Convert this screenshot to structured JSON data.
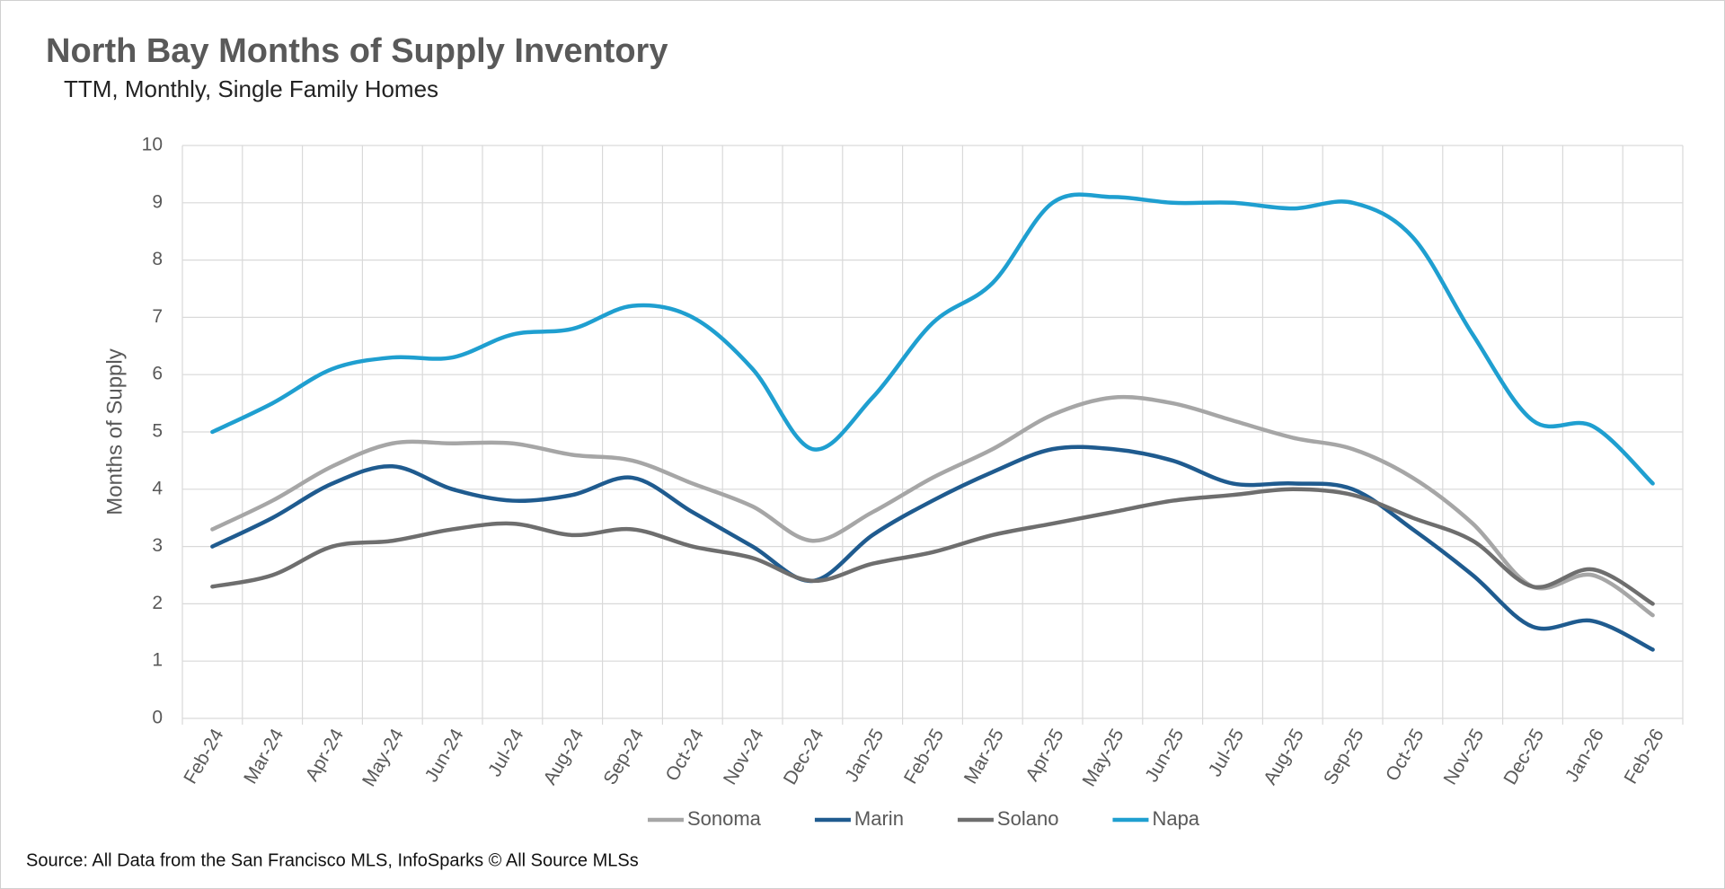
{
  "chart_data": {
    "type": "line",
    "title": "North Bay Months of Supply Inventory",
    "subtitle": "TTM, Monthly, Single Family Homes",
    "y_label": "Months of Supply",
    "source": "Source: All Data from the San Francisco MLS, InfoSparks © All Source MLSs",
    "categories": [
      "Feb-24",
      "Mar-24",
      "Apr-24",
      "May-24",
      "Jun-24",
      "Jul-24",
      "Aug-24",
      "Sep-24",
      "Oct-24",
      "Nov-24",
      "Dec-24",
      "Jan-25",
      "Feb-25",
      "Mar-25",
      "Apr-25",
      "May-25",
      "Jun-25",
      "Jul-25",
      "Aug-25",
      "Sep-25",
      "Oct-25",
      "Nov-25",
      "Dec-25",
      "Jan-26",
      "Feb-26"
    ],
    "series": [
      {
        "name": "Sonoma",
        "color": "#a6a6a6",
        "values": [
          3.3,
          3.8,
          4.4,
          4.8,
          4.8,
          4.8,
          4.6,
          4.5,
          4.1,
          3.7,
          3.1,
          3.6,
          4.2,
          4.7,
          5.3,
          5.6,
          5.5,
          5.2,
          4.9,
          4.7,
          4.2,
          3.4,
          2.3,
          2.5,
          1.8
        ]
      },
      {
        "name": "Marin",
        "color": "#1f5b8f",
        "values": [
          3.0,
          3.5,
          4.1,
          4.4,
          4.0,
          3.8,
          3.9,
          4.2,
          3.6,
          3.0,
          2.4,
          3.2,
          3.8,
          4.3,
          4.7,
          4.7,
          4.5,
          4.1,
          4.1,
          4.0,
          3.3,
          2.5,
          1.6,
          1.7,
          1.2
        ]
      },
      {
        "name": "Solano",
        "color": "#6e6e6e",
        "values": [
          2.3,
          2.5,
          3.0,
          3.1,
          3.3,
          3.4,
          3.2,
          3.3,
          3.0,
          2.8,
          2.4,
          2.7,
          2.9,
          3.2,
          3.4,
          3.6,
          3.8,
          3.9,
          4.0,
          3.9,
          3.5,
          3.1,
          2.3,
          2.6,
          2.0
        ]
      },
      {
        "name": "Napa",
        "color": "#1f9fd0",
        "values": [
          5.0,
          5.5,
          6.1,
          6.3,
          6.3,
          6.7,
          6.8,
          7.2,
          7.0,
          6.1,
          4.7,
          5.6,
          6.9,
          7.6,
          9.0,
          9.1,
          9.0,
          9.0,
          8.9,
          9.0,
          8.4,
          6.7,
          5.2,
          5.1,
          4.1
        ]
      }
    ],
    "ylim": [
      0,
      10
    ],
    "yticks": [
      0,
      1,
      2,
      3,
      4,
      5,
      6,
      7,
      8,
      9,
      10
    ],
    "grid": true,
    "legend": "bottom"
  }
}
